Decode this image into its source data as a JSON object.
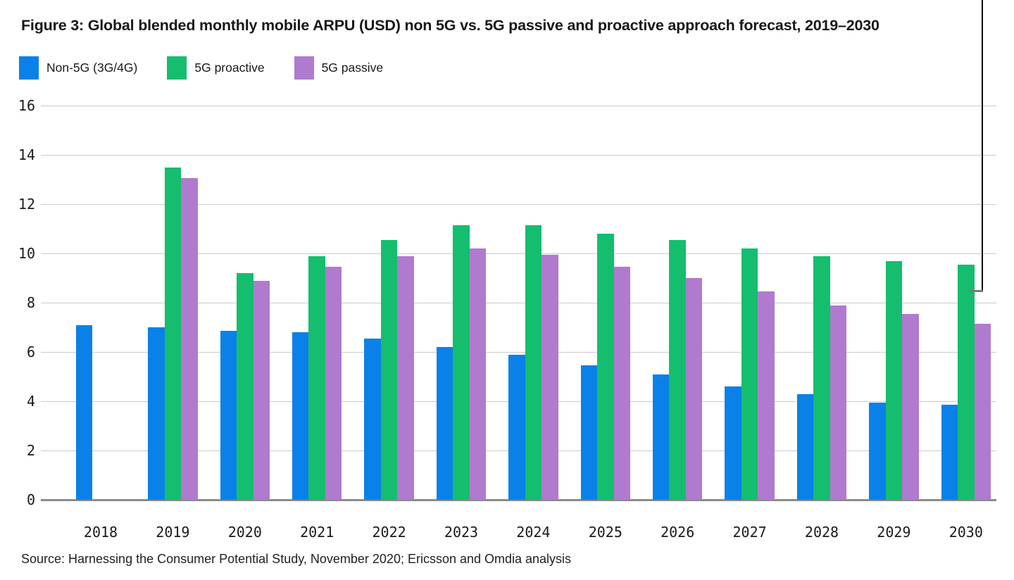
{
  "figure": {
    "title": "Figure 3: Global blended monthly mobile ARPU (USD) non 5G vs. 5G passive and proactive approach forecast, 2019–2030",
    "source": "Source: Harnessing the Consumer Potential Study, November 2020; Ericsson and Omdia analysis"
  },
  "legend": {
    "position": "top-left",
    "items": [
      {
        "label": "Non-5G (3G/4G)",
        "color": "#0981e9"
      },
      {
        "label": "5G proactive",
        "color": "#14be6e"
      },
      {
        "label": "5G passive",
        "color": "#b07acf"
      }
    ]
  },
  "chart_data": {
    "type": "bar",
    "title": "Figure 3: Global blended monthly mobile ARPU (USD) non 5G vs. 5G passive and proactive approach forecast, 2019–2030",
    "categories": [
      "2018",
      "2019",
      "2020",
      "2021",
      "2022",
      "2023",
      "2024",
      "2025",
      "2026",
      "2027",
      "2028",
      "2029",
      "2030"
    ],
    "series": [
      {
        "name": "Non-5G (3G/4G)",
        "color": "#0981e9",
        "values": [
          7.1,
          7.0,
          6.85,
          6.8,
          6.55,
          6.2,
          5.9,
          5.45,
          5.1,
          4.6,
          4.3,
          3.95,
          3.85
        ]
      },
      {
        "name": "5G proactive",
        "color": "#14be6e",
        "values": [
          null,
          13.5,
          9.2,
          9.9,
          10.55,
          11.15,
          11.15,
          10.8,
          10.55,
          10.2,
          9.9,
          9.7,
          9.55
        ]
      },
      {
        "name": "5G passive",
        "color": "#b07acf",
        "values": [
          null,
          13.05,
          8.9,
          9.45,
          9.9,
          10.2,
          9.95,
          9.45,
          9.0,
          8.45,
          7.9,
          7.55,
          7.15
        ]
      }
    ],
    "xlabel": "",
    "ylabel": "",
    "ylim": [
      0,
      16
    ],
    "yticks": [
      0,
      2,
      4,
      6,
      8,
      10,
      12,
      14,
      16
    ],
    "grid": "horizontal",
    "legend_position": "top-left"
  },
  "colors": {
    "text": "#1a1a1a",
    "gridline": "#cbcbcb",
    "baseline": "#8a8a8a",
    "annotation_line": "#000000",
    "annotation_foot": "#7b7b7b",
    "background": "#ffffff"
  }
}
